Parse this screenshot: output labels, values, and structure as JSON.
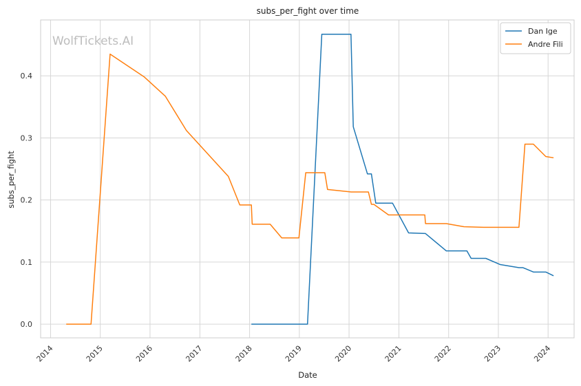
{
  "chart_data": {
    "type": "line",
    "title": "subs_per_fight over time",
    "xlabel": "Date",
    "ylabel": "subs_per_fight",
    "watermark": "WolfTickets.AI",
    "x_ticks": [
      "2014",
      "2015",
      "2016",
      "2017",
      "2018",
      "2019",
      "2020",
      "2021",
      "2022",
      "2023",
      "2024"
    ],
    "y_ticks": [
      "0.0",
      "0.1",
      "0.2",
      "0.3",
      "0.4"
    ],
    "xlim": [
      "2013-10-20",
      "2024-07-10"
    ],
    "ylim": [
      -0.022,
      0.49
    ],
    "grid": true,
    "legend_position": "top-right",
    "colors": {
      "Dan Ige": "#1f77b4",
      "Andre Fili": "#ff7f0e",
      "grid": "#d6d6d6",
      "frame": "#cccccc"
    },
    "series": [
      {
        "name": "Dan Ige",
        "points": [
          [
            "2018-01-14",
            0.0
          ],
          [
            "2019-03-02",
            0.0
          ],
          [
            "2019-06-15",
            0.467
          ],
          [
            "2020-01-15",
            0.467
          ],
          [
            "2020-02-01",
            0.318
          ],
          [
            "2020-05-15",
            0.242
          ],
          [
            "2020-06-13",
            0.242
          ],
          [
            "2020-07-15",
            0.195
          ],
          [
            "2020-11-15",
            0.195
          ],
          [
            "2021-03-13",
            0.147
          ],
          [
            "2021-07-15",
            0.146
          ],
          [
            "2021-12-15",
            0.118
          ],
          [
            "2022-05-15",
            0.118
          ],
          [
            "2022-06-15",
            0.106
          ],
          [
            "2022-10-01",
            0.106
          ],
          [
            "2023-01-15",
            0.096
          ],
          [
            "2023-06-01",
            0.091
          ],
          [
            "2023-07-01",
            0.091
          ],
          [
            "2023-09-15",
            0.084
          ],
          [
            "2023-12-15",
            0.084
          ],
          [
            "2024-02-10",
            0.078
          ]
        ]
      },
      {
        "name": "Andre Fili",
        "points": [
          [
            "2014-04-26",
            0.0
          ],
          [
            "2014-10-25",
            0.0
          ],
          [
            "2015-03-14",
            0.435
          ],
          [
            "2015-11-21",
            0.398
          ],
          [
            "2016-04-23",
            0.367
          ],
          [
            "2016-09-24",
            0.312
          ],
          [
            "2017-07-29",
            0.238
          ],
          [
            "2017-10-21",
            0.192
          ],
          [
            "2018-01-14",
            0.192
          ],
          [
            "2018-01-20",
            0.161
          ],
          [
            "2018-06-01",
            0.161
          ],
          [
            "2018-08-25",
            0.139
          ],
          [
            "2018-12-29",
            0.139
          ],
          [
            "2019-02-17",
            0.244
          ],
          [
            "2019-07-07",
            0.244
          ],
          [
            "2019-07-27",
            0.217
          ],
          [
            "2020-01-15",
            0.213
          ],
          [
            "2020-05-22",
            0.213
          ],
          [
            "2020-06-13",
            0.193
          ],
          [
            "2020-07-01",
            0.193
          ],
          [
            "2020-10-17",
            0.176
          ],
          [
            "2021-07-10",
            0.176
          ],
          [
            "2021-07-15",
            0.162
          ],
          [
            "2021-12-15",
            0.162
          ],
          [
            "2022-04-23",
            0.157
          ],
          [
            "2022-09-15",
            0.156
          ],
          [
            "2023-06-01",
            0.156
          ],
          [
            "2023-07-15",
            0.29
          ],
          [
            "2023-09-15",
            0.29
          ],
          [
            "2023-12-15",
            0.27
          ],
          [
            "2024-02-10",
            0.268
          ]
        ]
      }
    ]
  }
}
